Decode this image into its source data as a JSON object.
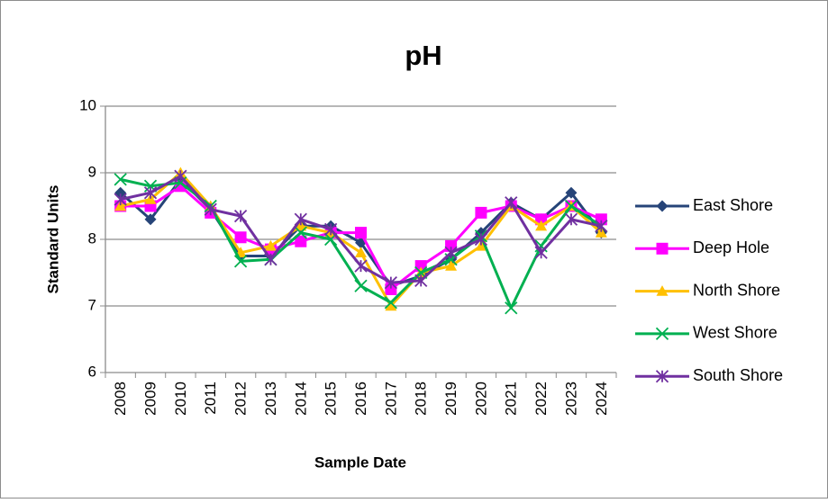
{
  "chart_data": {
    "type": "line",
    "title": "pH",
    "x_label": "Sample Date",
    "y_label": "Standard Units",
    "categories": [
      "2008",
      "2009",
      "2010",
      "2011",
      "2012",
      "2013",
      "2014",
      "2015",
      "2016",
      "2017",
      "2018",
      "2019",
      "2020",
      "2021",
      "2022",
      "2023",
      "2024"
    ],
    "ylim": [
      6,
      10
    ],
    "yticks": [
      6,
      7,
      8,
      9,
      10
    ],
    "grid": true,
    "legend": "right",
    "series": [
      {
        "name": "East Shore",
        "color": "#264478",
        "marker": "diamond",
        "values": [
          8.7,
          8.3,
          8.9,
          8.45,
          7.75,
          7.75,
          8.2,
          8.2,
          7.95,
          7.3,
          7.45,
          7.7,
          8.1,
          8.55,
          8.3,
          8.7,
          8.1
        ]
      },
      {
        "name": "Deep Hole",
        "color": "#ff00ff",
        "marker": "square",
        "values": [
          8.5,
          8.5,
          8.8,
          8.4,
          8.03,
          7.85,
          7.97,
          8.1,
          8.1,
          7.25,
          7.6,
          7.9,
          8.4,
          8.5,
          8.3,
          8.5,
          8.3
        ]
      },
      {
        "name": "North Shore",
        "color": "#ffc000",
        "marker": "triangle",
        "values": [
          8.5,
          8.6,
          9.0,
          8.5,
          7.8,
          7.9,
          8.2,
          8.1,
          7.8,
          7.0,
          7.5,
          7.6,
          7.9,
          8.5,
          8.2,
          8.5,
          8.1
        ]
      },
      {
        "name": "West Shore",
        "color": "#00b050",
        "marker": "x",
        "values": [
          8.9,
          8.8,
          8.85,
          8.5,
          7.67,
          7.7,
          8.1,
          8.0,
          7.3,
          7.05,
          7.5,
          7.7,
          8.05,
          6.97,
          7.9,
          8.5,
          8.2
        ]
      },
      {
        "name": "South Shore",
        "color": "#7030a0",
        "marker": "star",
        "values": [
          8.6,
          8.7,
          8.95,
          8.45,
          8.35,
          7.7,
          8.3,
          8.15,
          7.6,
          7.35,
          7.38,
          7.8,
          8.0,
          8.55,
          7.8,
          8.3,
          8.2
        ]
      }
    ]
  }
}
